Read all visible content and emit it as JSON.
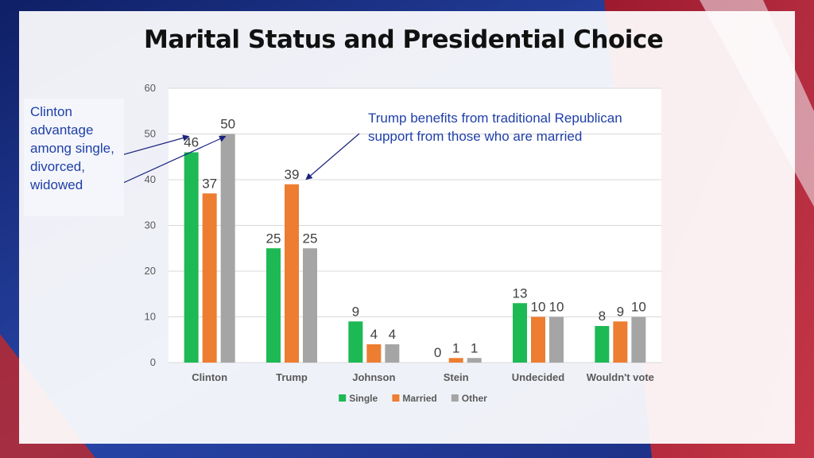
{
  "title": "Marital Status and Presidential Choice",
  "annotations": {
    "left": "Clinton advantage among single, divorced, widowed",
    "right": "Trump benefits from traditional Republican support from those who are married"
  },
  "colors": {
    "Single": "#1db954",
    "Married": "#ed7d31",
    "Other": "#a5a5a5",
    "annotation": "#1f3fa8",
    "arrow": "#1a237e"
  },
  "chart_data": {
    "type": "bar",
    "categories": [
      "Clinton",
      "Trump",
      "Johnson",
      "Stein",
      "Undecided",
      "Wouldn't vote"
    ],
    "series": [
      {
        "name": "Single",
        "values": [
          46,
          25,
          9,
          0,
          13,
          8
        ]
      },
      {
        "name": "Married",
        "values": [
          37,
          39,
          4,
          1,
          10,
          9
        ]
      },
      {
        "name": "Other",
        "values": [
          50,
          25,
          4,
          1,
          10,
          10
        ]
      }
    ],
    "ylim": [
      0,
      60
    ],
    "yticks": [
      0,
      10,
      20,
      30,
      40,
      50,
      60
    ],
    "grid": true,
    "legend": "bottom"
  }
}
